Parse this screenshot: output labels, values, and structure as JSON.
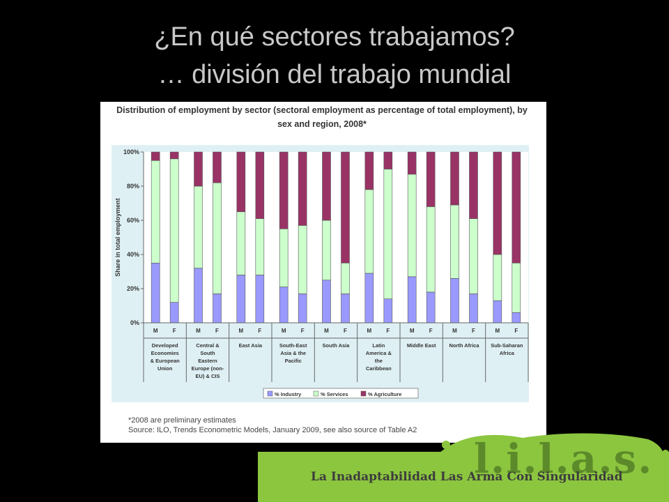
{
  "slide": {
    "title_line1": "¿En qué sectores trabajamos?",
    "title_line2": "… división del trabajo mundial"
  },
  "colors": {
    "industry": "#9999ff",
    "services": "#ccffcc",
    "agriculture": "#993366",
    "plot_background": "#dff0f4",
    "logo_green": "#8cc63f"
  },
  "chart_data": {
    "type": "bar",
    "stacked": true,
    "title": "Distribution of employment by sector (sectoral employment as percentage of total employment), by sex and region, 2008*",
    "ylabel": "Share in total employment",
    "ylim": [
      0,
      100
    ],
    "yticks": [
      "0%",
      "20%",
      "40%",
      "60%",
      "80%",
      "100%"
    ],
    "grid": false,
    "legend_position": "bottom",
    "regions": [
      [
        "Developed",
        "Economies",
        "& European",
        "Union"
      ],
      [
        "Central &",
        "South",
        "Eastern",
        "Europe (non-",
        "EU) & CIS"
      ],
      [
        "East Asia"
      ],
      [
        "South-East",
        "Asia & the",
        "Pacific"
      ],
      [
        "South Asia"
      ],
      [
        "Latin",
        "America &",
        "the",
        "Caribbean"
      ],
      [
        "Middle East"
      ],
      [
        "North Africa"
      ],
      [
        "Sub-Saharan",
        "Africa"
      ]
    ],
    "categories": [
      "M",
      "F",
      "M",
      "F",
      "M",
      "F",
      "M",
      "F",
      "M",
      "F",
      "M",
      "F",
      "M",
      "F",
      "M",
      "F",
      "M",
      "F"
    ],
    "series": [
      {
        "name": "% Industry",
        "values": [
          35,
          12,
          32,
          17,
          28,
          28,
          21,
          17,
          25,
          17,
          29,
          14,
          27,
          18,
          26,
          17,
          13,
          6
        ]
      },
      {
        "name": "% Services",
        "values": [
          60,
          84,
          48,
          65,
          37,
          33,
          34,
          40,
          35,
          18,
          49,
          76,
          60,
          50,
          43,
          44,
          27,
          29
        ]
      },
      {
        "name": "% Agriculture",
        "values": [
          5,
          4,
          20,
          18,
          35,
          39,
          45,
          43,
          40,
          65,
          22,
          10,
          13,
          32,
          31,
          39,
          60,
          65
        ]
      }
    ],
    "footnote": "*2008 are preliminary estimates",
    "source": "Source: ILO, Trends Econometric Models, January 2009, see also source of Table A2"
  },
  "logo": {
    "letters": "l.i.l.a.s.",
    "tagline": "La Inadaptabilidad Las Arma Con Singularidad"
  }
}
